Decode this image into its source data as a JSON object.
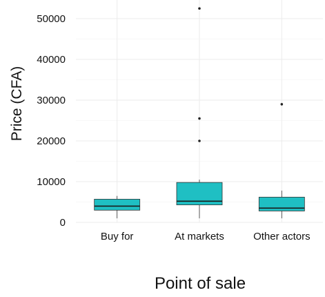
{
  "chart_data": {
    "type": "box",
    "title": "",
    "xlabel": "Point of sale",
    "ylabel": "Price (CFA)",
    "ylim": [
      0,
      55000
    ],
    "yticks": [
      0,
      10000,
      20000,
      30000,
      40000,
      50000
    ],
    "ytick_labels": [
      "0",
      "10000",
      "20000",
      "30000",
      "40000",
      "50000"
    ],
    "grid": true,
    "box_color": "#1fbfc3",
    "categories": [
      "Buy for",
      "At markets",
      "Other actors"
    ],
    "boxes": [
      {
        "category": "Buy for",
        "whisker_low": 1000,
        "q1": 3000,
        "median": 4000,
        "q3": 5700,
        "whisker_high": 6500,
        "outliers": []
      },
      {
        "category": "At markets",
        "whisker_low": 1000,
        "q1": 4300,
        "median": 5200,
        "q3": 9800,
        "whisker_high": 10500,
        "outliers": [
          20000,
          25500,
          52500
        ]
      },
      {
        "category": "Other actors",
        "whisker_low": 1000,
        "q1": 2800,
        "median": 3500,
        "q3": 6200,
        "whisker_high": 7800,
        "outliers": [
          29000
        ]
      }
    ]
  }
}
